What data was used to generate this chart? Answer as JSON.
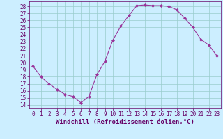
{
  "x": [
    0,
    1,
    2,
    3,
    4,
    5,
    6,
    7,
    8,
    9,
    10,
    11,
    12,
    13,
    14,
    15,
    16,
    17,
    18,
    19,
    20,
    21,
    22,
    23
  ],
  "y": [
    19.5,
    18.0,
    17.0,
    16.2,
    15.5,
    15.2,
    14.3,
    15.2,
    18.3,
    20.2,
    23.2,
    25.2,
    26.7,
    28.1,
    28.2,
    28.1,
    28.1,
    28.0,
    27.5,
    26.3,
    25.0,
    23.3,
    22.5,
    21.0
  ],
  "line_color": "#993399",
  "marker": "D",
  "marker_size": 2,
  "linewidth": 0.8,
  "background_color": "#cceeff",
  "grid_color": "#99cccc",
  "xlabel": "Windchill (Refroidissement éolien,°C)",
  "xlim": [
    -0.5,
    23.5
  ],
  "ylim": [
    13.5,
    28.7
  ],
  "yticks": [
    14,
    15,
    16,
    17,
    18,
    19,
    20,
    21,
    22,
    23,
    24,
    25,
    26,
    27,
    28
  ],
  "xticks": [
    0,
    1,
    2,
    3,
    4,
    5,
    6,
    7,
    8,
    9,
    10,
    11,
    12,
    13,
    14,
    15,
    16,
    17,
    18,
    19,
    20,
    21,
    22,
    23
  ],
  "tick_fontsize": 5.5,
  "label_fontsize": 6.5,
  "tick_color": "#660066",
  "label_color": "#660066",
  "spine_color": "#660066",
  "grid_linewidth": 0.5
}
